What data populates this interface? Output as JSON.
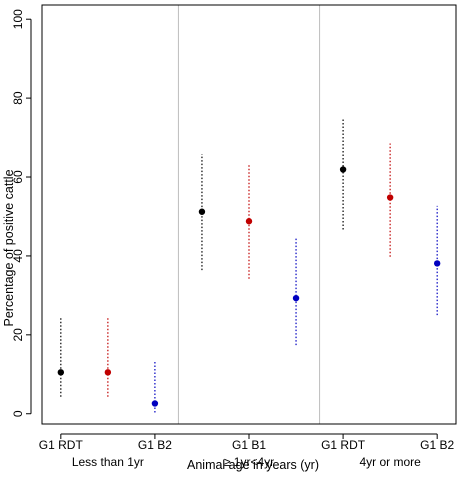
{
  "chart_data": {
    "type": "scatter",
    "xlabel": "Animal age in years (yr)",
    "ylabel": "Percentage of positive cattle",
    "ylim": [
      0,
      100
    ],
    "yticks": [
      0,
      20,
      40,
      60,
      80,
      100
    ],
    "grid": false,
    "groups": [
      {
        "label": "Less than 1yr"
      },
      {
        "label": "≥ 1yr<4yr"
      },
      {
        "label": "4yr or more"
      }
    ],
    "x_tick_labels": [
      {
        "label": "G1 RDT",
        "position": 1
      },
      {
        "label": "G1 B2",
        "position": 3
      },
      {
        "label": "G1 B1",
        "position": 5
      },
      {
        "label": "G1 RDT",
        "position": 7
      },
      {
        "label": "G1 B2",
        "position": 9
      }
    ],
    "series": [
      {
        "test": "G1 RDT",
        "color": "#000000",
        "points": [
          {
            "x": 1,
            "y": 10.5,
            "lower": 4.3,
            "upper": 24.2
          },
          {
            "x": 4,
            "y": 51.2,
            "lower": 36.4,
            "upper": 65.8
          },
          {
            "x": 7,
            "y": 61.9,
            "lower": 46.7,
            "upper": 74.6
          }
        ]
      },
      {
        "test": "G1 B1",
        "color": "#c00000",
        "points": [
          {
            "x": 2,
            "y": 10.5,
            "lower": 4.3,
            "upper": 24.2
          },
          {
            "x": 5,
            "y": 48.8,
            "lower": 34.2,
            "upper": 63.5
          },
          {
            "x": 8,
            "y": 54.8,
            "lower": 39.8,
            "upper": 68.5
          }
        ]
      },
      {
        "test": "G1 B2",
        "color": "#0000c0",
        "points": [
          {
            "x": 3,
            "y": 2.6,
            "lower": 0.3,
            "upper": 13.5
          },
          {
            "x": 6,
            "y": 29.3,
            "lower": 17.4,
            "upper": 44.6
          },
          {
            "x": 9,
            "y": 38.1,
            "lower": 25.0,
            "upper": 52.7
          }
        ]
      }
    ]
  }
}
